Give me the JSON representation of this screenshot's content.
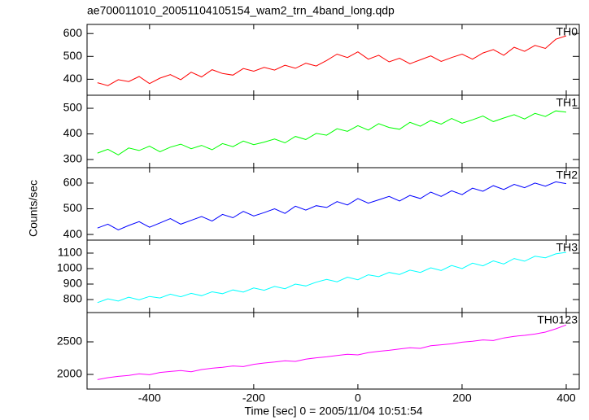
{
  "chart_data": [
    {
      "type": "line",
      "title": "ae700011010_20051104105154_wam2_trn_4band_long.qdp",
      "x": [
        -500,
        -480,
        -460,
        -440,
        -420,
        -400,
        -380,
        -360,
        -340,
        -320,
        -300,
        -280,
        -260,
        -240,
        -220,
        -200,
        -180,
        -160,
        -140,
        -120,
        -100,
        -80,
        -60,
        -40,
        -20,
        0,
        20,
        40,
        60,
        80,
        100,
        120,
        140,
        160,
        180,
        200,
        220,
        240,
        260,
        280,
        300,
        320,
        340,
        360,
        380,
        400
      ],
      "series": [
        {
          "name": "TH0",
          "color": "#ff0000",
          "values": [
            385,
            372,
            398,
            390,
            412,
            381,
            405,
            420,
            398,
            431,
            410,
            442,
            425,
            418,
            447,
            435,
            452,
            440,
            461,
            448,
            470,
            458,
            482,
            510,
            495,
            520,
            488,
            505,
            476,
            492,
            468,
            485,
            502,
            478,
            495,
            510,
            488,
            515,
            530,
            505,
            540,
            522,
            548,
            535,
            575,
            590
          ]
        }
      ],
      "xlim": [
        -520,
        425
      ],
      "ylim": [
        330,
        640
      ],
      "yticks": [
        400,
        500,
        600
      ]
    },
    {
      "type": "line",
      "x": [
        -500,
        -480,
        -460,
        -440,
        -420,
        -400,
        -380,
        -360,
        -340,
        -320,
        -300,
        -280,
        -260,
        -240,
        -220,
        -200,
        -180,
        -160,
        -140,
        -120,
        -100,
        -80,
        -60,
        -40,
        -20,
        0,
        20,
        40,
        60,
        80,
        100,
        120,
        140,
        160,
        180,
        200,
        220,
        240,
        260,
        280,
        300,
        320,
        340,
        360,
        380,
        400
      ],
      "series": [
        {
          "name": "TH1",
          "color": "#00ff00",
          "values": [
            325,
            340,
            318,
            345,
            335,
            352,
            330,
            348,
            360,
            342,
            355,
            338,
            362,
            350,
            372,
            358,
            368,
            380,
            365,
            390,
            378,
            402,
            395,
            420,
            410,
            432,
            415,
            440,
            425,
            418,
            445,
            430,
            452,
            438,
            460,
            442,
            455,
            470,
            448,
            462,
            475,
            458,
            480,
            468,
            490,
            485
          ]
        }
      ],
      "xlim": [
        -520,
        425
      ],
      "ylim": [
        268,
        551
      ],
      "yticks": [
        300,
        400,
        500
      ]
    },
    {
      "type": "line",
      "ylabel": "Counts/sec",
      "x": [
        -500,
        -480,
        -460,
        -440,
        -420,
        -400,
        -380,
        -360,
        -340,
        -320,
        -300,
        -280,
        -260,
        -240,
        -220,
        -200,
        -180,
        -160,
        -140,
        -120,
        -100,
        -80,
        -60,
        -40,
        -20,
        0,
        20,
        40,
        60,
        80,
        100,
        120,
        140,
        160,
        180,
        200,
        220,
        240,
        260,
        280,
        300,
        320,
        340,
        360,
        380,
        400
      ],
      "series": [
        {
          "name": "TH2",
          "color": "#0000ff",
          "values": [
            425,
            440,
            418,
            435,
            450,
            428,
            445,
            462,
            440,
            455,
            470,
            452,
            478,
            465,
            490,
            472,
            485,
            500,
            482,
            510,
            495,
            512,
            505,
            528,
            515,
            540,
            522,
            535,
            548,
            530,
            552,
            540,
            565,
            548,
            570,
            555,
            580,
            568,
            590,
            575,
            595,
            582,
            600,
            588,
            605,
            598
          ]
        }
      ],
      "xlim": [
        -520,
        425
      ],
      "ylim": [
        378,
        660
      ],
      "yticks": [
        400,
        500,
        600
      ]
    },
    {
      "type": "line",
      "x": [
        -500,
        -480,
        -460,
        -440,
        -420,
        -400,
        -380,
        -360,
        -340,
        -320,
        -300,
        -280,
        -260,
        -240,
        -220,
        -200,
        -180,
        -160,
        -140,
        -120,
        -100,
        -80,
        -60,
        -40,
        -20,
        0,
        20,
        40,
        60,
        80,
        100,
        120,
        140,
        160,
        180,
        200,
        220,
        240,
        260,
        280,
        300,
        320,
        340,
        360,
        380,
        400
      ],
      "series": [
        {
          "name": "TH3",
          "color": "#00ffff",
          "values": [
            780,
            805,
            790,
            815,
            798,
            820,
            810,
            835,
            818,
            840,
            825,
            850,
            838,
            862,
            848,
            875,
            860,
            885,
            870,
            900,
            888,
            912,
            930,
            915,
            945,
            928,
            960,
            948,
            975,
            962,
            990,
            975,
            1005,
            988,
            1020,
            1000,
            1035,
            1018,
            1050,
            1030,
            1065,
            1048,
            1080,
            1070,
            1095,
            1105
          ]
        }
      ],
      "xlim": [
        -520,
        425
      ],
      "ylim": [
        716,
        1184
      ],
      "yticks": [
        800,
        900,
        1000,
        1100
      ]
    },
    {
      "type": "line",
      "xlabel": "Time [sec] 0 = 2005/11/04 10:51:54",
      "x": [
        -500,
        -480,
        -460,
        -440,
        -420,
        -400,
        -380,
        -360,
        -340,
        -320,
        -300,
        -280,
        -260,
        -240,
        -220,
        -200,
        -180,
        -160,
        -140,
        -120,
        -100,
        -80,
        -60,
        -40,
        -20,
        0,
        20,
        40,
        60,
        80,
        100,
        120,
        140,
        160,
        180,
        200,
        220,
        240,
        260,
        280,
        300,
        320,
        340,
        360,
        380,
        400
      ],
      "series": [
        {
          "name": "TH0123",
          "color": "#ff00ff",
          "values": [
            1920,
            1950,
            1970,
            1985,
            2010,
            1995,
            2030,
            2045,
            2060,
            2040,
            2075,
            2095,
            2110,
            2130,
            2120,
            2155,
            2175,
            2190,
            2210,
            2200,
            2235,
            2255,
            2270,
            2290,
            2310,
            2300,
            2335,
            2355,
            2370,
            2390,
            2410,
            2400,
            2440,
            2455,
            2470,
            2495,
            2510,
            2530,
            2520,
            2560,
            2585,
            2600,
            2620,
            2650,
            2700,
            2760
          ]
        }
      ],
      "xlim": [
        -520,
        425
      ],
      "ylim": [
        1775,
        2950
      ],
      "yticks": [
        2000,
        2500
      ],
      "xticks": [
        -400,
        -200,
        0,
        200,
        400
      ]
    }
  ]
}
